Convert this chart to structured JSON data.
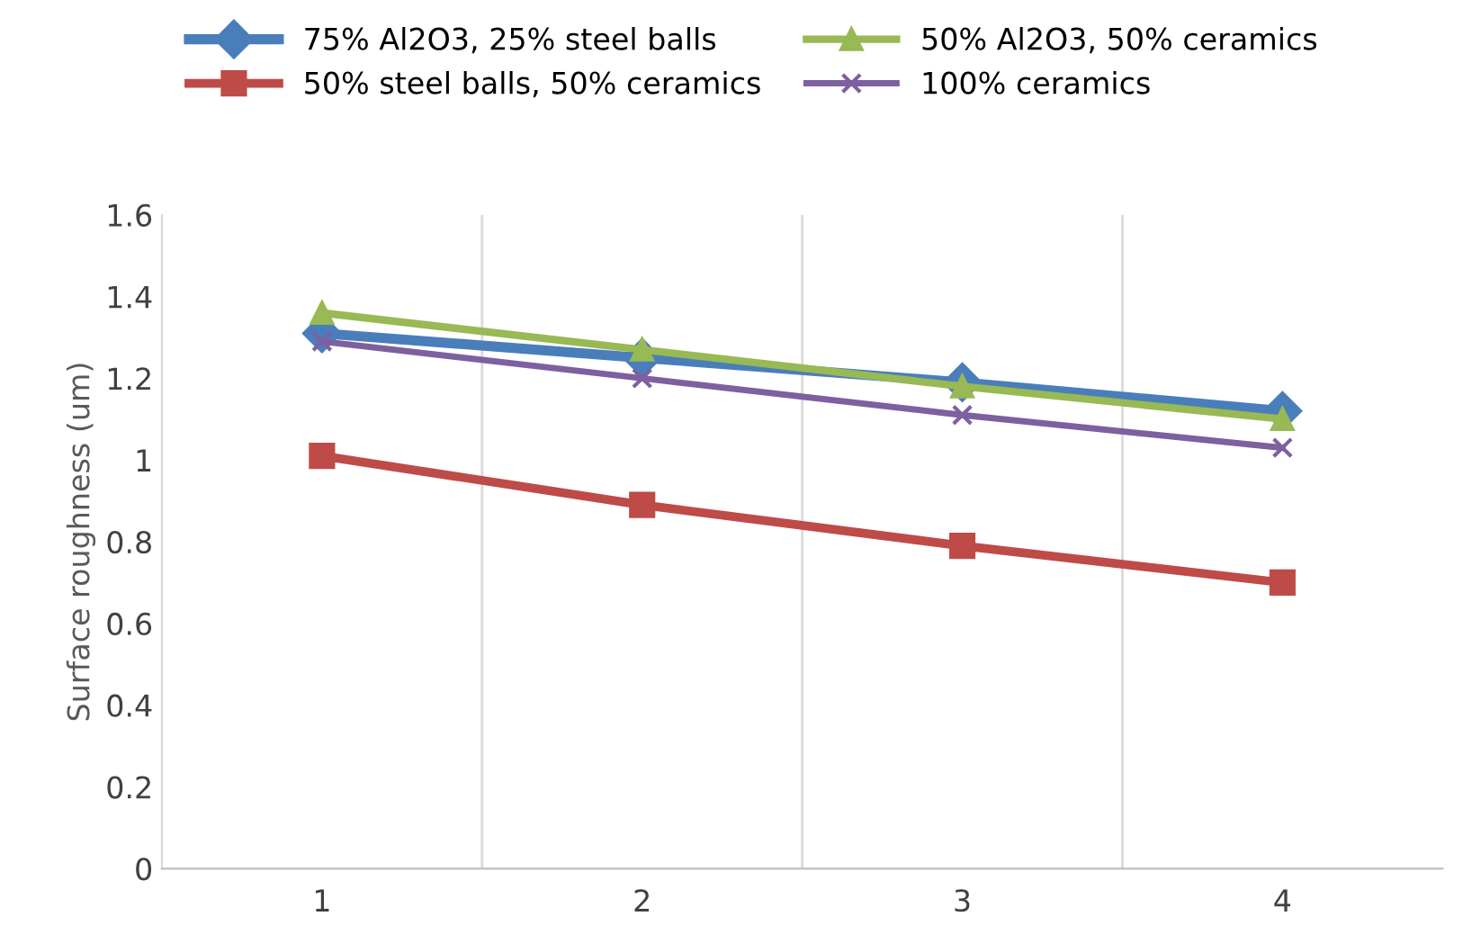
{
  "chart_data": {
    "type": "line",
    "ylabel": "Surface roughness (um)",
    "categories": [
      "1",
      "2",
      "3",
      "4"
    ],
    "series": [
      {
        "name": "75% Al2O3, 25% steel balls",
        "color": "#4a7ebb",
        "marker": "diamond",
        "values": [
          1.31,
          1.25,
          1.19,
          1.12
        ]
      },
      {
        "name": "50% steel balls, 50% ceramics",
        "color": "#be4b48",
        "marker": "square",
        "values": [
          1.01,
          0.89,
          0.79,
          0.7
        ]
      },
      {
        "name": "50% Al2O3, 50% ceramics",
        "color": "#98b954",
        "marker": "triangle",
        "values": [
          1.36,
          1.27,
          1.18,
          1.1
        ]
      },
      {
        "name": "100% ceramics",
        "color": "#7d60a0",
        "marker": "cross",
        "values": [
          1.29,
          1.2,
          1.11,
          1.03
        ]
      }
    ],
    "ylim": [
      0,
      1.6
    ],
    "yticks": [
      0,
      0.2,
      0.4,
      0.6,
      0.8,
      1,
      1.2,
      1.4,
      1.6
    ],
    "grid": "x",
    "legend": "top",
    "line_style": "solid"
  }
}
